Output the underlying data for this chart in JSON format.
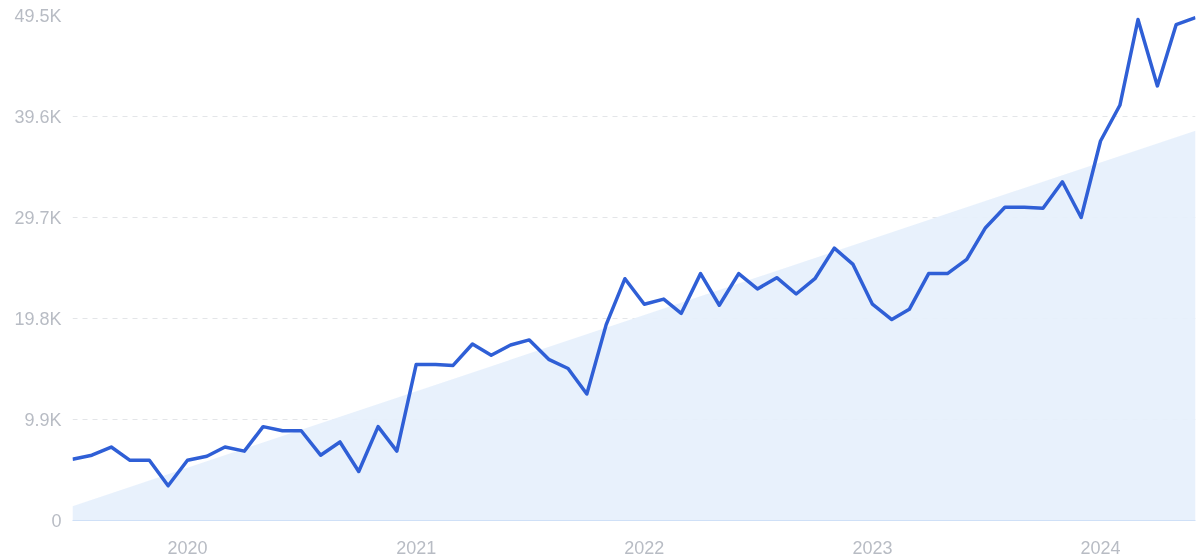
{
  "chart_data": {
    "type": "line",
    "x": [
      "2019-07",
      "2019-08",
      "2019-09",
      "2019-10",
      "2019-11",
      "2019-12",
      "2020-01",
      "2020-02",
      "2020-03",
      "2020-04",
      "2020-05",
      "2020-06",
      "2020-07",
      "2020-08",
      "2020-09",
      "2020-10",
      "2020-11",
      "2020-12",
      "2021-01",
      "2021-02",
      "2021-03",
      "2021-04",
      "2021-05",
      "2021-06",
      "2021-07",
      "2021-08",
      "2021-09",
      "2021-10",
      "2021-11",
      "2021-12",
      "2022-01",
      "2022-02",
      "2022-03",
      "2022-04",
      "2022-05",
      "2022-06",
      "2022-07",
      "2022-08",
      "2022-09",
      "2022-10",
      "2022-11",
      "2022-12",
      "2023-01",
      "2023-02",
      "2023-03",
      "2023-04",
      "2023-05",
      "2023-06",
      "2023-07",
      "2023-08",
      "2023-09",
      "2023-10",
      "2023-11",
      "2023-12",
      "2024-01",
      "2024-02",
      "2024-03",
      "2024-04",
      "2024-05",
      "2024-06"
    ],
    "series": [
      {
        "type": "area",
        "color": "#e6f0fc",
        "x": [
          "2019-07",
          "2024-06"
        ],
        "values": [
          1400,
          38200
        ]
      },
      {
        "color": "#2f5fd6",
        "values": [
          6000,
          6400,
          7200,
          5900,
          5900,
          3400,
          5900,
          6300,
          7200,
          6800,
          9200,
          8800,
          8800,
          6400,
          7700,
          4800,
          9200,
          6800,
          15300,
          15300,
          15200,
          17300,
          16200,
          17200,
          17700,
          15800,
          14900,
          12400,
          19200,
          23700,
          21200,
          21700,
          20300,
          24200,
          21100,
          24200,
          22700,
          23800,
          22200,
          23700,
          26700,
          25100,
          21200,
          19700,
          20700,
          24200,
          24200,
          25600,
          28700,
          30700,
          30700,
          30600,
          33200,
          29700,
          37200,
          40700,
          49100,
          42600,
          48600,
          49300
        ]
      }
    ],
    "xlim": [
      "2019-07",
      "2024-06"
    ],
    "ylim": [
      0,
      49500
    ],
    "xticks": [
      {
        "value": "2020-01",
        "label": "2020"
      },
      {
        "value": "2021-01",
        "label": "2021"
      },
      {
        "value": "2022-01",
        "label": "2022"
      },
      {
        "value": "2023-01",
        "label": "2023"
      },
      {
        "value": "2024-01",
        "label": "2024"
      }
    ],
    "yticks": [
      0,
      {
        "value": 9900,
        "label": "9.9K"
      },
      {
        "value": 19800,
        "label": "19.8K"
      },
      {
        "value": 29700,
        "label": "29.7K"
      },
      {
        "value": 39600,
        "label": "39.6K"
      },
      {
        "value": 49500,
        "label": "49.5K"
      }
    ],
    "grid": "y"
  }
}
